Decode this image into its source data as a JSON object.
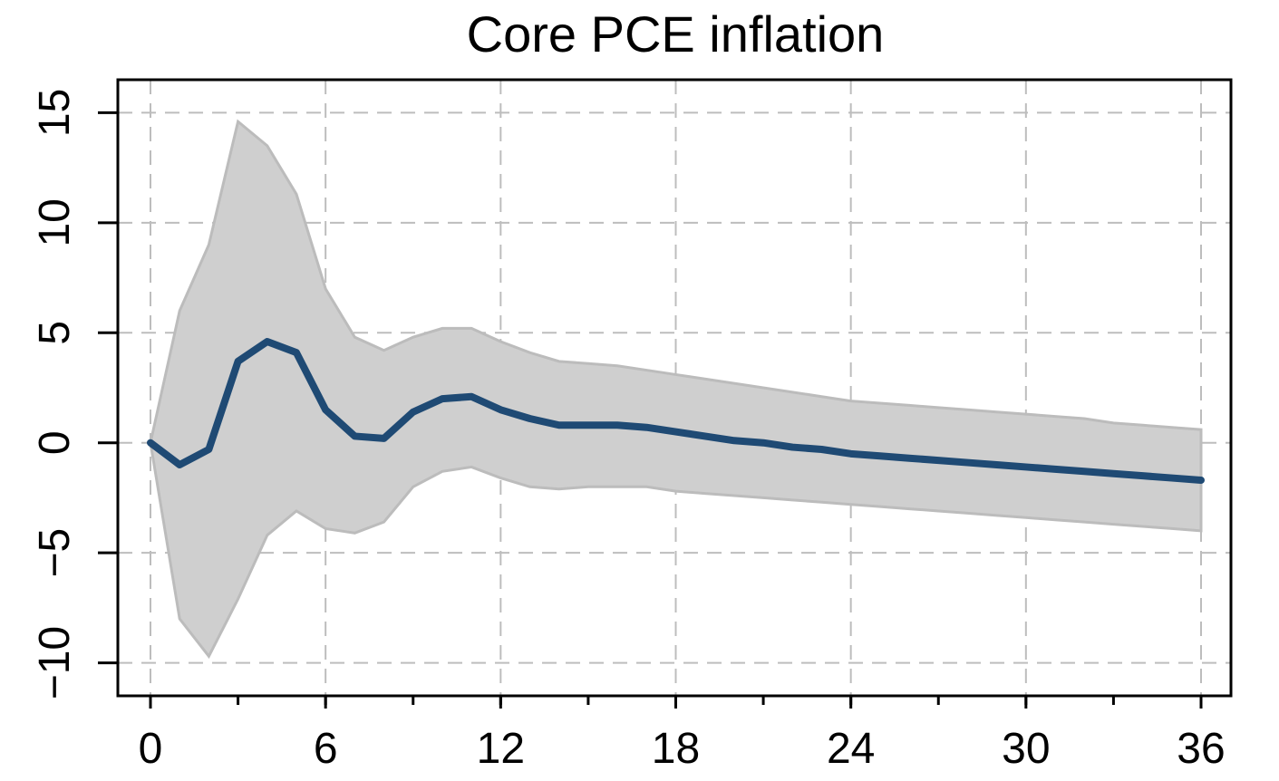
{
  "chart_data": {
    "type": "area",
    "title": "Core PCE inflation",
    "xlabel": "",
    "ylabel": "",
    "xlim": [
      0,
      36
    ],
    "ylim": [
      -11.5,
      16.5
    ],
    "xticks": [
      0,
      6,
      12,
      18,
      24,
      30,
      36
    ],
    "xticks_minor": [
      0,
      3,
      6,
      9,
      12,
      15,
      18,
      21,
      24,
      27,
      30,
      33,
      36
    ],
    "xtick_labels": [
      "0",
      "6",
      "12",
      "18",
      "24",
      "30",
      "36"
    ],
    "yticks": [
      -10,
      -5,
      0,
      5,
      10,
      15
    ],
    "ytick_labels": [
      "−10",
      "−5",
      "0",
      "5",
      "10",
      "15"
    ],
    "grid": true,
    "x": [
      0,
      1,
      2,
      3,
      4,
      5,
      6,
      7,
      8,
      9,
      10,
      11,
      12,
      13,
      14,
      15,
      16,
      17,
      18,
      19,
      20,
      21,
      22,
      23,
      24,
      25,
      26,
      27,
      28,
      29,
      30,
      31,
      32,
      33,
      34,
      35,
      36
    ],
    "series": [
      {
        "kind": "band",
        "upper": [
          0.0,
          6.0,
          9.0,
          14.6,
          13.5,
          11.3,
          7.0,
          4.8,
          4.2,
          4.8,
          5.2,
          5.2,
          4.6,
          4.1,
          3.7,
          3.6,
          3.5,
          3.3,
          3.1,
          2.9,
          2.7,
          2.5,
          2.3,
          2.1,
          1.9,
          1.8,
          1.7,
          1.6,
          1.5,
          1.4,
          1.3,
          1.2,
          1.1,
          0.9,
          0.8,
          0.7,
          0.6
        ],
        "lower": [
          0.0,
          -8.0,
          -9.7,
          -7.1,
          -4.2,
          -3.1,
          -3.9,
          -4.1,
          -3.6,
          -2.0,
          -1.3,
          -1.1,
          -1.6,
          -2.0,
          -2.1,
          -2.0,
          -2.0,
          -2.0,
          -2.2,
          -2.3,
          -2.4,
          -2.5,
          -2.6,
          -2.7,
          -2.8,
          -2.9,
          -3.0,
          -3.1,
          -3.2,
          -3.3,
          -3.4,
          -3.5,
          -3.6,
          -3.7,
          -3.8,
          -3.9,
          -4.0
        ]
      },
      {
        "kind": "line",
        "values": [
          0.0,
          -1.0,
          -0.3,
          3.7,
          4.6,
          4.1,
          1.5,
          0.3,
          0.2,
          1.4,
          2.0,
          2.1,
          1.5,
          1.1,
          0.8,
          0.8,
          0.8,
          0.7,
          0.5,
          0.3,
          0.1,
          0.0,
          -0.2,
          -0.3,
          -0.5,
          -0.6,
          -0.7,
          -0.8,
          -0.9,
          -1.0,
          -1.1,
          -1.2,
          -1.3,
          -1.4,
          -1.5,
          -1.6,
          -1.7
        ]
      }
    ],
    "colors": {
      "line": "#1f4a74",
      "band_fill": "#cfcfcf",
      "band_edge": "#bcbcbc",
      "grid": "#bdbdbd",
      "axis": "#000000",
      "background": "#ffffff"
    }
  }
}
